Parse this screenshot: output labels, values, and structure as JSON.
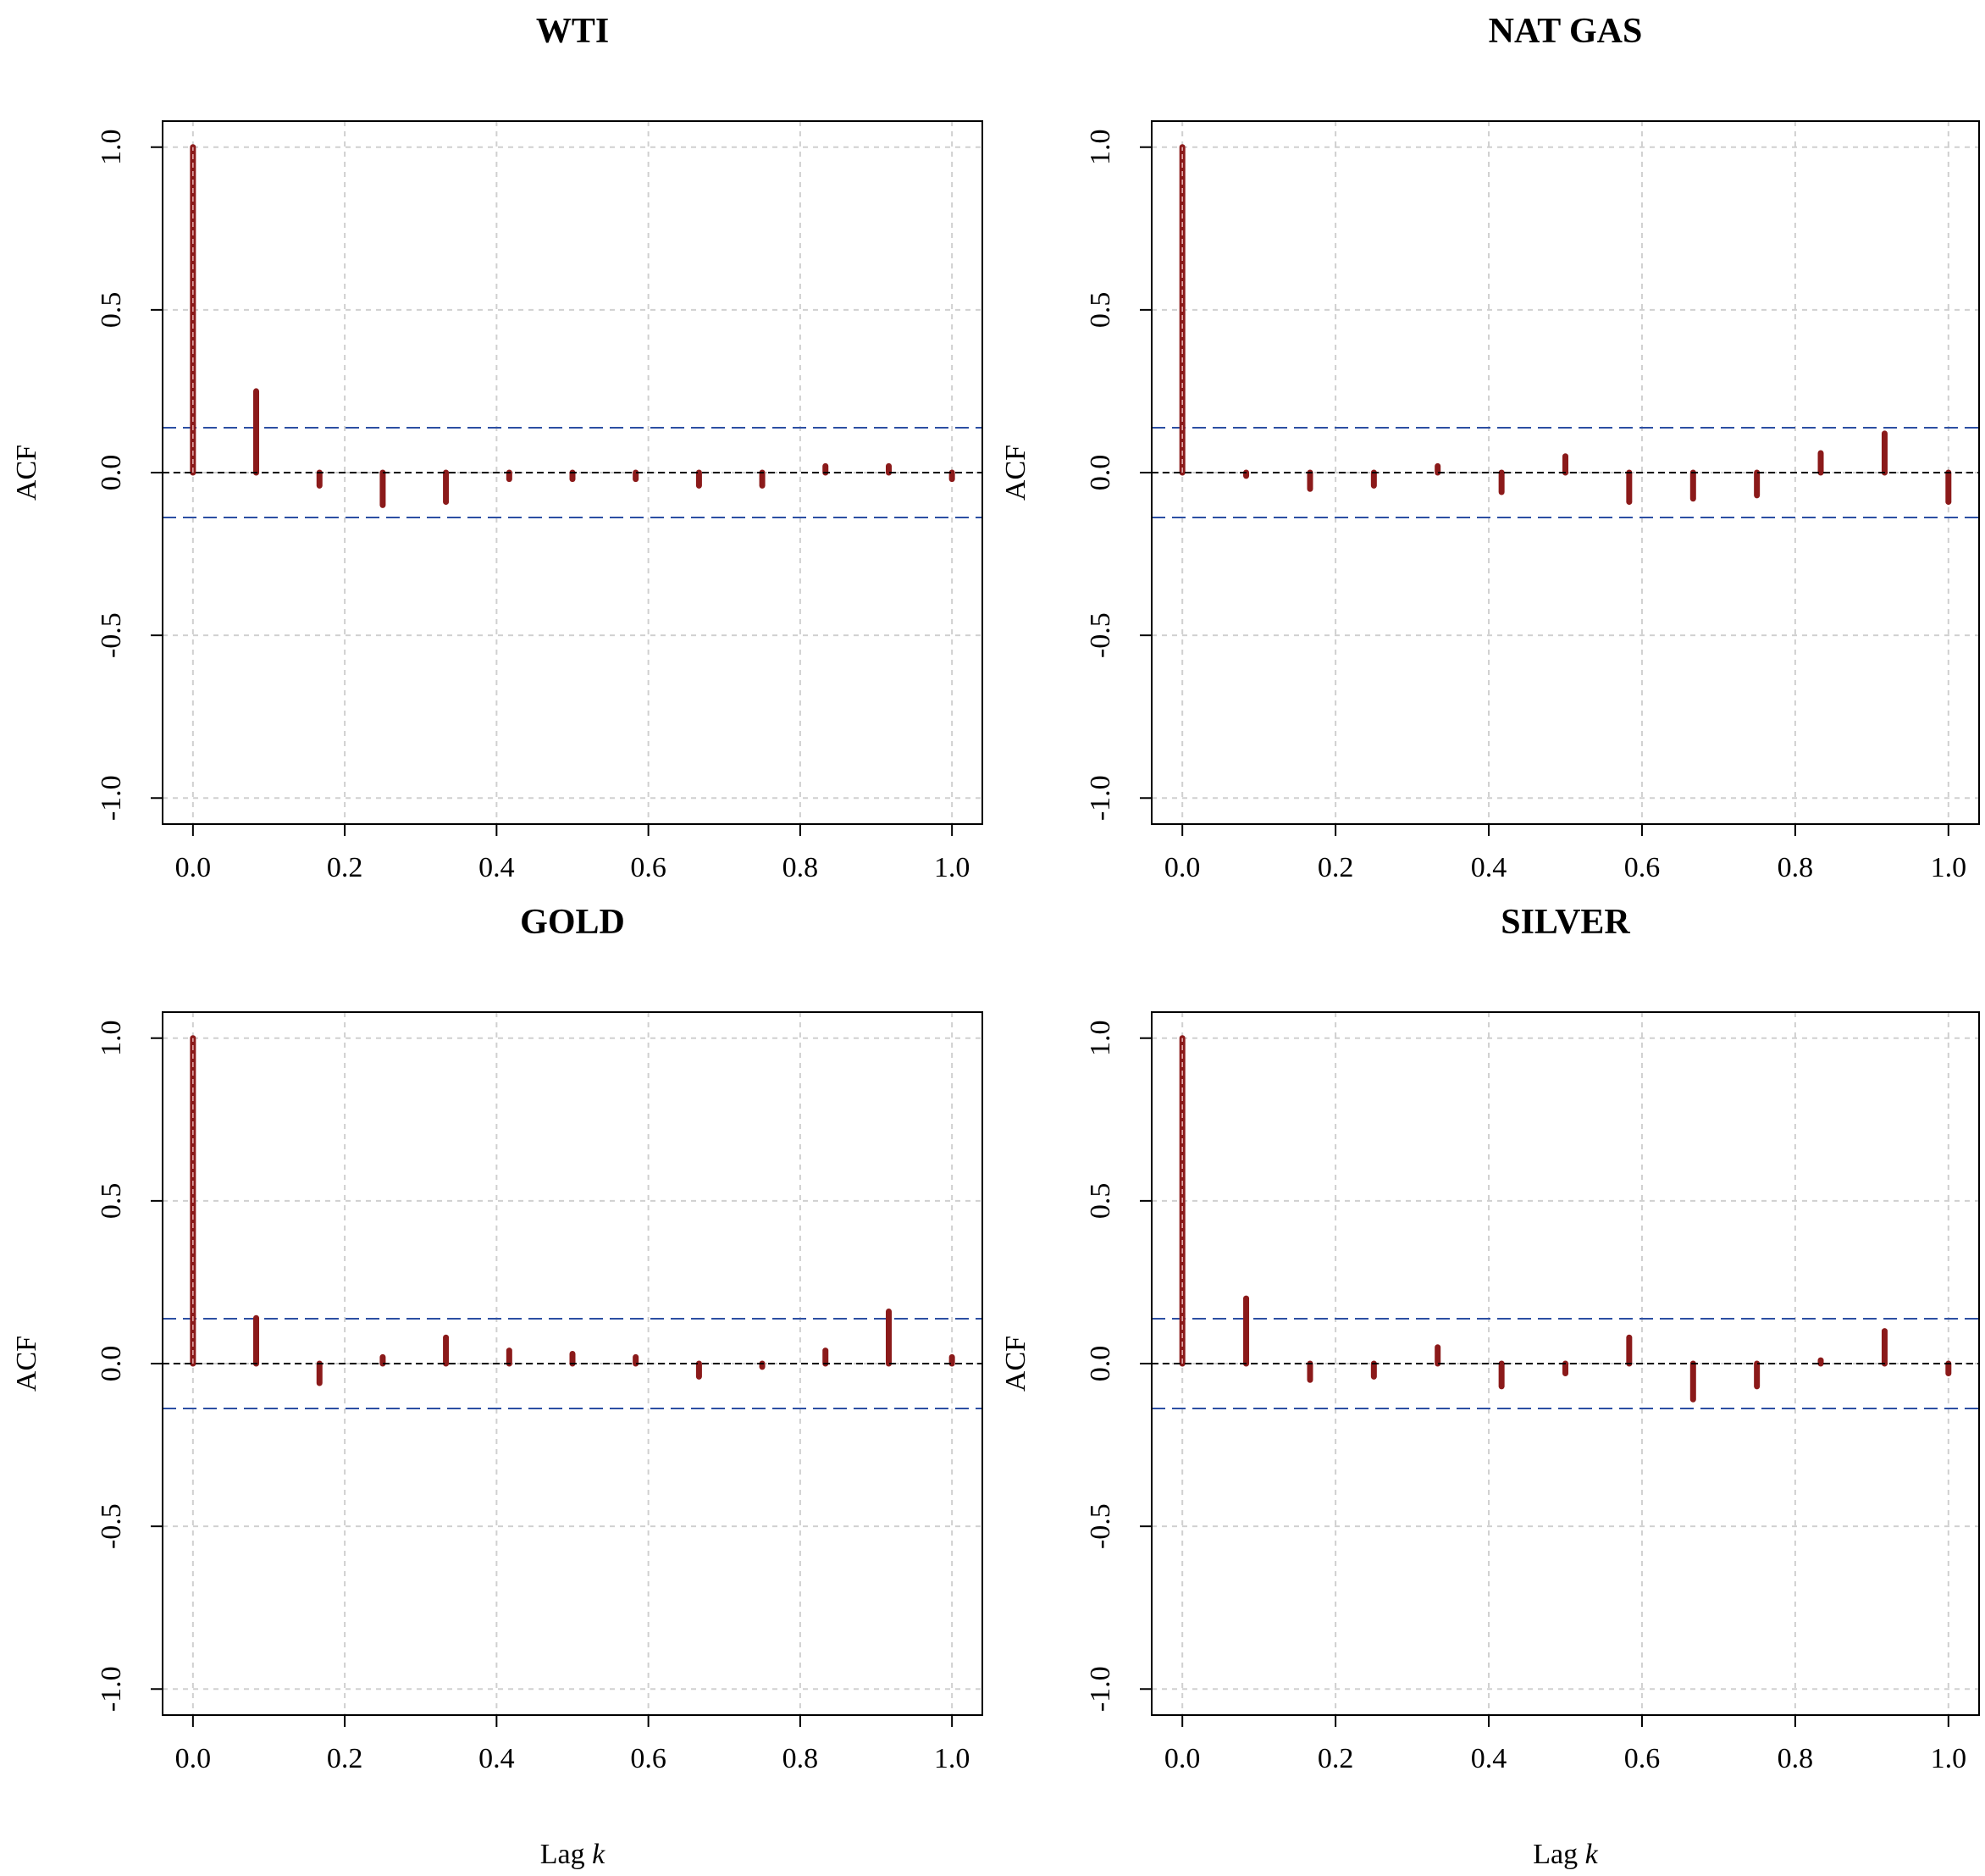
{
  "chart_data": [
    {
      "type": "bar",
      "title": "WTI",
      "xlabel": "",
      "ylabel": "ACF",
      "xlim": [
        0,
        1
      ],
      "ylim": [
        -1,
        1
      ],
      "x_ticks": [
        "0.0",
        "0.2",
        "0.4",
        "0.6",
        "0.8",
        "1.0"
      ],
      "y_ticks": [
        "-1.0",
        "-0.5",
        "0.0",
        "0.5",
        "1.0"
      ],
      "conf_limit": 0.138,
      "lags": [
        0,
        0.0833,
        0.1667,
        0.25,
        0.3333,
        0.4167,
        0.5,
        0.5833,
        0.6667,
        0.75,
        0.8333,
        0.9167,
        1.0
      ],
      "values": [
        1.0,
        0.25,
        -0.04,
        -0.1,
        -0.09,
        -0.02,
        -0.02,
        -0.02,
        -0.04,
        -0.04,
        0.02,
        0.02,
        -0.02
      ]
    },
    {
      "type": "bar",
      "title": "NAT GAS",
      "xlabel": "",
      "ylabel": "ACF",
      "xlim": [
        0,
        1
      ],
      "ylim": [
        -1,
        1
      ],
      "x_ticks": [
        "0.0",
        "0.2",
        "0.4",
        "0.6",
        "0.8",
        "1.0"
      ],
      "y_ticks": [
        "-1.0",
        "-0.5",
        "0.0",
        "0.5",
        "1.0"
      ],
      "conf_limit": 0.138,
      "lags": [
        0,
        0.0833,
        0.1667,
        0.25,
        0.3333,
        0.4167,
        0.5,
        0.5833,
        0.6667,
        0.75,
        0.8333,
        0.9167,
        1.0
      ],
      "values": [
        1.0,
        -0.01,
        -0.05,
        -0.04,
        0.02,
        -0.06,
        0.05,
        -0.09,
        -0.08,
        -0.07,
        0.06,
        0.12,
        -0.09
      ]
    },
    {
      "type": "bar",
      "title": "GOLD",
      "xlabel": "Lag k",
      "ylabel": "ACF",
      "xlim": [
        0,
        1
      ],
      "ylim": [
        -1,
        1
      ],
      "x_ticks": [
        "0.0",
        "0.2",
        "0.4",
        "0.6",
        "0.8",
        "1.0"
      ],
      "y_ticks": [
        "-1.0",
        "-0.5",
        "0.0",
        "0.5",
        "1.0"
      ],
      "conf_limit": 0.138,
      "lags": [
        0,
        0.0833,
        0.1667,
        0.25,
        0.3333,
        0.4167,
        0.5,
        0.5833,
        0.6667,
        0.75,
        0.8333,
        0.9167,
        1.0
      ],
      "values": [
        1.0,
        0.14,
        -0.06,
        0.02,
        0.08,
        0.04,
        0.03,
        0.02,
        -0.04,
        -0.01,
        0.04,
        0.16,
        0.02
      ]
    },
    {
      "type": "bar",
      "title": "SILVER",
      "xlabel": "Lag k",
      "ylabel": "ACF",
      "xlim": [
        0,
        1
      ],
      "ylim": [
        -1,
        1
      ],
      "x_ticks": [
        "0.0",
        "0.2",
        "0.4",
        "0.6",
        "0.8",
        "1.0"
      ],
      "y_ticks": [
        "-1.0",
        "-0.5",
        "0.0",
        "0.5",
        "1.0"
      ],
      "conf_limit": 0.138,
      "lags": [
        0,
        0.0833,
        0.1667,
        0.25,
        0.3333,
        0.4167,
        0.5,
        0.5833,
        0.6667,
        0.75,
        0.8333,
        0.9167,
        1.0
      ],
      "values": [
        1.0,
        0.2,
        -0.05,
        -0.04,
        0.05,
        -0.07,
        -0.03,
        0.08,
        -0.11,
        -0.07,
        0.01,
        0.1,
        -0.03
      ]
    }
  ],
  "colors": {
    "bar": "#8b1a1a",
    "confidence": "#2c4fa3",
    "zero": "#000000",
    "grid": "#d0d0d0"
  }
}
